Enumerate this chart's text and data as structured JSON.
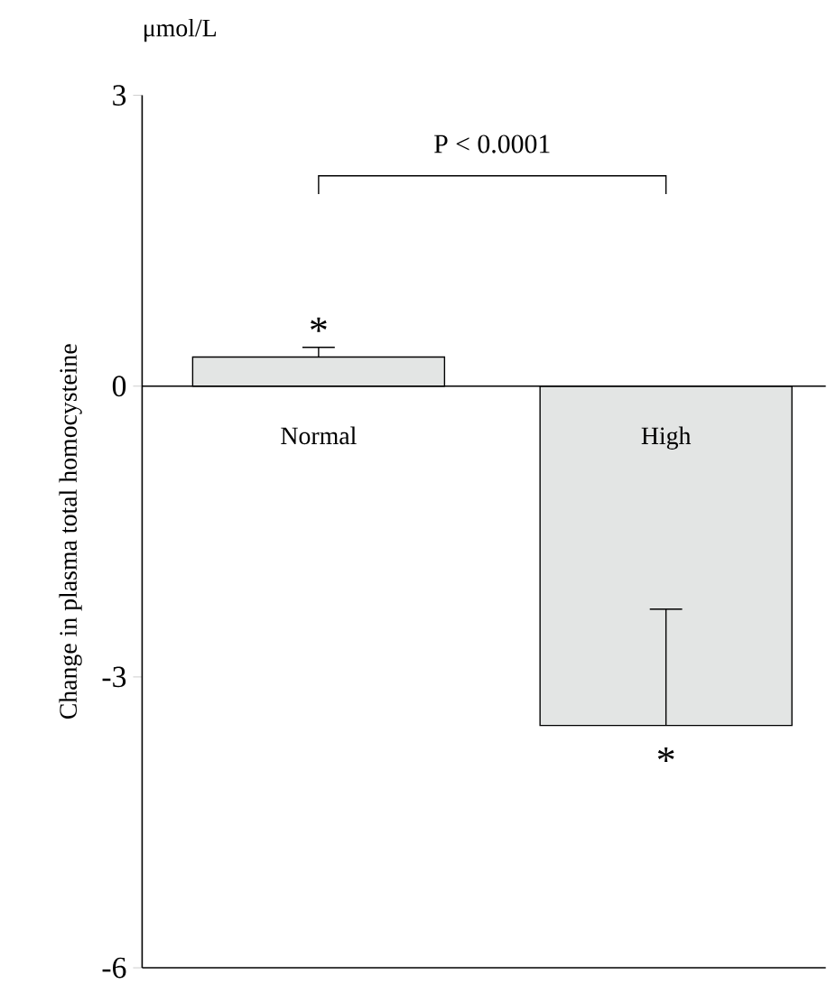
{
  "chart_data": {
    "type": "bar",
    "ylabel": "Change in plasma total homocysteine",
    "categories": [
      "Normal",
      "High"
    ],
    "values": [
      0.3,
      -3.5
    ],
    "errors": [
      [
        0.3,
        0.4
      ],
      [
        -3.5,
        -2.3
      ]
    ],
    "color": "#e3e5e4",
    "ylim": [
      -6,
      3
    ],
    "yticks": [
      -6,
      -3,
      0,
      3
    ],
    "annotations": [
      "μmol/L",
      "P < 0.0001",
      "*",
      "*"
    ]
  }
}
